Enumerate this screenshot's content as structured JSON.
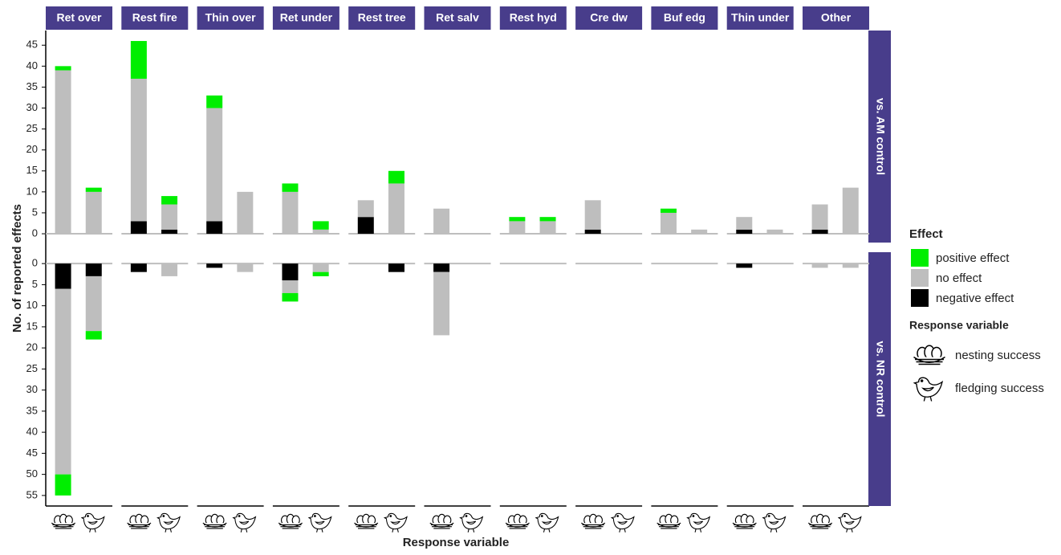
{
  "chart_data": {
    "type": "bar",
    "stacked": true,
    "x_label": "Response variable",
    "y_label": "No. of reported effects",
    "categories": [
      "Ret over",
      "Rest fire",
      "Thin over",
      "Ret under",
      "Rest tree",
      "Ret salv",
      "Rest hyd",
      "Cre dw",
      "Buf edg",
      "Thin under",
      "Other"
    ],
    "legend": {
      "title": "Effect"
    },
    "series": [
      {
        "name": "negative effect",
        "color": "#000000"
      },
      {
        "name": "no effect",
        "color": "#bebebe"
      },
      {
        "name": "positive effect",
        "color": "#00ee00"
      }
    ],
    "response_legend": {
      "title": "Response variable",
      "items": [
        "nesting success",
        "fledging success"
      ]
    },
    "panels": [
      {
        "label": "vs. AM control",
        "reversed": false,
        "ylim": [
          -2.1,
          48.5
        ],
        "yticks": [
          0,
          5,
          10,
          15,
          20,
          25,
          30,
          35,
          40,
          45
        ],
        "stacks": [
          [
            [
              0,
              0
            ],
            [
              3,
              1
            ],
            [
              3,
              0
            ],
            [
              0,
              0
            ],
            [
              4,
              0
            ],
            [
              0,
              0
            ],
            [
              0,
              0
            ],
            [
              1,
              0
            ],
            [
              0,
              0
            ],
            [
              1,
              0
            ],
            [
              1,
              0
            ]
          ],
          [
            [
              39,
              10
            ],
            [
              34,
              6
            ],
            [
              27,
              10
            ],
            [
              10,
              1
            ],
            [
              4,
              12
            ],
            [
              6,
              0
            ],
            [
              3,
              3
            ],
            [
              7,
              0
            ],
            [
              5,
              1
            ],
            [
              3,
              1
            ],
            [
              6,
              11
            ]
          ],
          [
            [
              1,
              1
            ],
            [
              9,
              2
            ],
            [
              3,
              0
            ],
            [
              2,
              2
            ],
            [
              0,
              3
            ],
            [
              0,
              0
            ],
            [
              1,
              1
            ],
            [
              0,
              0
            ],
            [
              1,
              0
            ],
            [
              0,
              0
            ],
            [
              0,
              0
            ]
          ]
        ]
      },
      {
        "label": "vs. NR control",
        "reversed": true,
        "ylim": [
          -2.7,
          57.5
        ],
        "yticks": [
          0,
          5,
          10,
          15,
          20,
          25,
          30,
          35,
          40,
          45,
          50,
          55
        ],
        "stacks": [
          [
            [
              6,
              3
            ],
            [
              2,
              0
            ],
            [
              1,
              0
            ],
            [
              4,
              0
            ],
            [
              0,
              2
            ],
            [
              2,
              0
            ],
            [
              0,
              0
            ],
            [
              0,
              0
            ],
            [
              0,
              0
            ],
            [
              1,
              0
            ],
            [
              0,
              0
            ]
          ],
          [
            [
              44,
              13
            ],
            [
              0,
              3
            ],
            [
              0,
              2
            ],
            [
              3,
              2
            ],
            [
              0,
              0
            ],
            [
              15,
              0
            ],
            [
              0,
              0
            ],
            [
              0,
              0
            ],
            [
              0,
              0
            ],
            [
              0,
              0
            ],
            [
              1,
              1
            ]
          ],
          [
            [
              5,
              2
            ],
            [
              0,
              0
            ],
            [
              0,
              0
            ],
            [
              2,
              1
            ],
            [
              0,
              0
            ],
            [
              0,
              0
            ],
            [
              0,
              0
            ],
            [
              0,
              0
            ],
            [
              0,
              0
            ],
            [
              0,
              0
            ],
            [
              0,
              0
            ]
          ]
        ]
      }
    ]
  }
}
